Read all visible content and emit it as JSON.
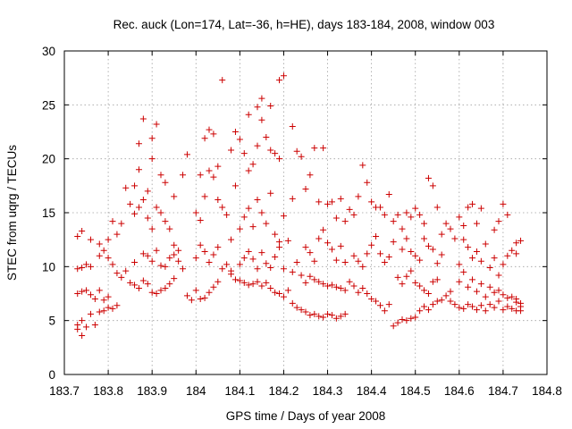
{
  "chart_data": {
    "type": "scatter",
    "title": "Rec. auck (Lon=174, Lat=-36, h=HE), days 183-184, 2008, window 003",
    "xlabel": "GPS time / Days of year 2008",
    "ylabel": "STEC from uqrg / TECUs",
    "xlim": [
      183.7,
      184.8
    ],
    "ylim": [
      0,
      30
    ],
    "xticks": [
      "183.7",
      "183.8",
      "183.9",
      "184",
      "184.1",
      "184.2",
      "184.3",
      "184.4",
      "184.5",
      "184.6",
      "184.7",
      "184.8"
    ],
    "yticks": [
      "0",
      "5",
      "10",
      "15",
      "20",
      "25",
      "30"
    ],
    "grid": true,
    "legend": "none",
    "marker": "+",
    "marker_color": "#cc0000",
    "points": [
      [
        183.73,
        4.2
      ],
      [
        183.73,
        4.6
      ],
      [
        183.74,
        3.6
      ],
      [
        183.74,
        5.0
      ],
      [
        183.75,
        4.4
      ],
      [
        183.76,
        5.6
      ],
      [
        183.77,
        4.6
      ],
      [
        183.78,
        5.8
      ],
      [
        183.79,
        5.9
      ],
      [
        183.8,
        6.2
      ],
      [
        183.81,
        6.1
      ],
      [
        183.82,
        6.4
      ],
      [
        183.73,
        7.5
      ],
      [
        183.74,
        7.7
      ],
      [
        183.75,
        7.8
      ],
      [
        183.76,
        7.4
      ],
      [
        183.77,
        7.0
      ],
      [
        183.78,
        7.8
      ],
      [
        183.79,
        6.9
      ],
      [
        183.8,
        7.2
      ],
      [
        183.73,
        9.8
      ],
      [
        183.74,
        9.9
      ],
      [
        183.75,
        10.2
      ],
      [
        183.76,
        10.0
      ],
      [
        183.78,
        11.0
      ],
      [
        183.79,
        11.5
      ],
      [
        183.8,
        10.8
      ],
      [
        183.81,
        10.2
      ],
      [
        183.82,
        9.4
      ],
      [
        183.83,
        9.0
      ],
      [
        183.73,
        12.8
      ],
      [
        183.74,
        13.3
      ],
      [
        183.76,
        12.5
      ],
      [
        183.78,
        12.1
      ],
      [
        183.8,
        12.5
      ],
      [
        183.81,
        14.2
      ],
      [
        183.82,
        13.0
      ],
      [
        183.83,
        14.0
      ],
      [
        183.84,
        17.3
      ],
      [
        183.85,
        15.8
      ],
      [
        183.86,
        17.5
      ],
      [
        183.87,
        19.0
      ],
      [
        183.85,
        8.5
      ],
      [
        183.86,
        8.3
      ],
      [
        183.87,
        8.0
      ],
      [
        183.88,
        8.7
      ],
      [
        183.89,
        8.4
      ],
      [
        183.9,
        7.6
      ],
      [
        183.91,
        7.5
      ],
      [
        183.92,
        7.8
      ],
      [
        183.93,
        8.0
      ],
      [
        183.94,
        8.4
      ],
      [
        183.95,
        8.9
      ],
      [
        183.84,
        9.6
      ],
      [
        183.86,
        10.4
      ],
      [
        183.88,
        11.2
      ],
      [
        183.89,
        11.0
      ],
      [
        183.9,
        10.5
      ],
      [
        183.91,
        11.5
      ],
      [
        183.92,
        10.1
      ],
      [
        183.93,
        10.0
      ],
      [
        183.94,
        10.8
      ],
      [
        183.95,
        11.1
      ],
      [
        183.96,
        11.5
      ],
      [
        183.86,
        14.9
      ],
      [
        183.87,
        15.5
      ],
      [
        183.88,
        16.2
      ],
      [
        183.89,
        14.5
      ],
      [
        183.9,
        13.5
      ],
      [
        183.91,
        15.5
      ],
      [
        183.92,
        15.0
      ],
      [
        183.93,
        14.2
      ],
      [
        183.94,
        13.5
      ],
      [
        183.95,
        12.0
      ],
      [
        183.87,
        21.4
      ],
      [
        183.88,
        23.7
      ],
      [
        183.89,
        17.0
      ],
      [
        183.9,
        20.0
      ],
      [
        183.9,
        21.9
      ],
      [
        183.91,
        23.2
      ],
      [
        183.92,
        18.5
      ],
      [
        183.93,
        17.8
      ],
      [
        183.95,
        16.5
      ],
      [
        183.97,
        18.5
      ],
      [
        183.98,
        20.4
      ],
      [
        183.96,
        10.5
      ],
      [
        183.97,
        9.8
      ],
      [
        183.98,
        7.3
      ],
      [
        183.99,
        6.9
      ],
      [
        184.0,
        7.8
      ],
      [
        184.01,
        7.0
      ],
      [
        184.02,
        7.1
      ],
      [
        184.03,
        7.6
      ],
      [
        184.04,
        8.1
      ],
      [
        184.05,
        8.6
      ],
      [
        184.0,
        10.8
      ],
      [
        184.01,
        12.0
      ],
      [
        184.02,
        11.4
      ],
      [
        184.03,
        10.4
      ],
      [
        184.04,
        11.1
      ],
      [
        184.05,
        11.8
      ],
      [
        184.06,
        9.8
      ],
      [
        184.07,
        10.2
      ],
      [
        184.08,
        9.6
      ],
      [
        184.0,
        15.0
      ],
      [
        184.01,
        14.3
      ],
      [
        184.02,
        16.5
      ],
      [
        184.03,
        18.9
      ],
      [
        184.04,
        18.3
      ],
      [
        184.05,
        16.2
      ],
      [
        184.06,
        15.5
      ],
      [
        184.07,
        14.8
      ],
      [
        184.08,
        12.5
      ],
      [
        184.01,
        18.5
      ],
      [
        184.02,
        21.9
      ],
      [
        184.03,
        22.7
      ],
      [
        184.04,
        22.3
      ],
      [
        184.05,
        19.3
      ],
      [
        184.06,
        27.3
      ],
      [
        184.08,
        20.8
      ],
      [
        184.09,
        17.5
      ],
      [
        184.08,
        9.3
      ],
      [
        184.09,
        8.8
      ],
      [
        184.1,
        8.7
      ],
      [
        184.11,
        8.5
      ],
      [
        184.12,
        8.3
      ],
      [
        184.13,
        8.4
      ],
      [
        184.14,
        8.6
      ],
      [
        184.15,
        8.2
      ],
      [
        184.16,
        8.5
      ],
      [
        184.17,
        8.0
      ],
      [
        184.18,
        7.6
      ],
      [
        184.19,
        7.5
      ],
      [
        184.2,
        7.2
      ],
      [
        184.1,
        10.2
      ],
      [
        184.11,
        10.8
      ],
      [
        184.12,
        11.4
      ],
      [
        184.13,
        10.7
      ],
      [
        184.14,
        9.8
      ],
      [
        184.15,
        11.3
      ],
      [
        184.16,
        10.3
      ],
      [
        184.17,
        9.9
      ],
      [
        184.18,
        10.9
      ],
      [
        184.19,
        11.8
      ],
      [
        184.2,
        9.8
      ],
      [
        184.1,
        13.5
      ],
      [
        184.11,
        14.6
      ],
      [
        184.12,
        15.4
      ],
      [
        184.13,
        13.7
      ],
      [
        184.14,
        16.2
      ],
      [
        184.15,
        15.0
      ],
      [
        184.16,
        14.0
      ],
      [
        184.17,
        16.8
      ],
      [
        184.18,
        13.0
      ],
      [
        184.19,
        12.3
      ],
      [
        184.09,
        22.5
      ],
      [
        184.1,
        21.8
      ],
      [
        184.11,
        20.5
      ],
      [
        184.12,
        18.9
      ],
      [
        184.13,
        19.5
      ],
      [
        184.14,
        21.2
      ],
      [
        184.15,
        23.6
      ],
      [
        184.16,
        22.0
      ],
      [
        184.17,
        20.8
      ],
      [
        184.18,
        20.5
      ],
      [
        184.19,
        20.0
      ],
      [
        184.12,
        24.1
      ],
      [
        184.14,
        24.8
      ],
      [
        184.15,
        25.6
      ],
      [
        184.17,
        24.9
      ],
      [
        184.19,
        27.3
      ],
      [
        184.2,
        27.7
      ],
      [
        184.2,
        14.7
      ],
      [
        184.21,
        12.4
      ],
      [
        184.22,
        16.3
      ],
      [
        184.23,
        20.7
      ],
      [
        184.24,
        20.2
      ],
      [
        184.22,
        23.0
      ],
      [
        184.25,
        17.2
      ],
      [
        184.26,
        18.5
      ],
      [
        184.27,
        21.0
      ],
      [
        184.29,
        21.0
      ],
      [
        184.28,
        16.0
      ],
      [
        184.21,
        7.8
      ],
      [
        184.22,
        6.6
      ],
      [
        184.23,
        6.2
      ],
      [
        184.24,
        6.0
      ],
      [
        184.25,
        5.8
      ],
      [
        184.26,
        5.5
      ],
      [
        184.27,
        5.6
      ],
      [
        184.28,
        5.4
      ],
      [
        184.29,
        5.3
      ],
      [
        184.3,
        5.6
      ],
      [
        184.31,
        5.5
      ],
      [
        184.32,
        5.2
      ],
      [
        184.33,
        5.4
      ],
      [
        184.34,
        5.6
      ],
      [
        184.22,
        9.5
      ],
      [
        184.23,
        10.4
      ],
      [
        184.24,
        9.2
      ],
      [
        184.25,
        8.5
      ],
      [
        184.26,
        9.1
      ],
      [
        184.27,
        8.8
      ],
      [
        184.28,
        8.6
      ],
      [
        184.29,
        8.4
      ],
      [
        184.3,
        8.2
      ],
      [
        184.31,
        8.3
      ],
      [
        184.32,
        8.1
      ],
      [
        184.33,
        8.0
      ],
      [
        184.34,
        7.8
      ],
      [
        184.25,
        11.8
      ],
      [
        184.26,
        11.3
      ],
      [
        184.27,
        10.5
      ],
      [
        184.28,
        12.6
      ],
      [
        184.29,
        13.4
      ],
      [
        184.3,
        12.2
      ],
      [
        184.31,
        11.6
      ],
      [
        184.32,
        10.6
      ],
      [
        184.33,
        11.9
      ],
      [
        184.34,
        10.4
      ],
      [
        184.3,
        15.8
      ],
      [
        184.31,
        16.0
      ],
      [
        184.32,
        14.5
      ],
      [
        184.33,
        16.3
      ],
      [
        184.34,
        14.2
      ],
      [
        184.35,
        15.3
      ],
      [
        184.36,
        14.8
      ],
      [
        184.37,
        16.5
      ],
      [
        184.38,
        19.4
      ],
      [
        184.39,
        17.8
      ],
      [
        184.4,
        16.0
      ],
      [
        184.41,
        15.5
      ],
      [
        184.35,
        8.6
      ],
      [
        184.36,
        8.2
      ],
      [
        184.37,
        7.6
      ],
      [
        184.38,
        8.0
      ],
      [
        184.39,
        7.5
      ],
      [
        184.4,
        7.0
      ],
      [
        184.41,
        6.8
      ],
      [
        184.42,
        6.4
      ],
      [
        184.43,
        5.9
      ],
      [
        184.44,
        6.5
      ],
      [
        184.36,
        11.0
      ],
      [
        184.37,
        10.5
      ],
      [
        184.38,
        10.0
      ],
      [
        184.39,
        11.2
      ],
      [
        184.4,
        12.0
      ],
      [
        184.41,
        12.8
      ],
      [
        184.42,
        11.2
      ],
      [
        184.43,
        10.4
      ],
      [
        184.44,
        10.9
      ],
      [
        184.45,
        12.3
      ],
      [
        184.42,
        15.5
      ],
      [
        184.43,
        14.8
      ],
      [
        184.44,
        16.7
      ],
      [
        184.45,
        14.2
      ],
      [
        184.46,
        14.8
      ],
      [
        184.47,
        13.5
      ],
      [
        184.48,
        15.0
      ],
      [
        184.49,
        14.6
      ],
      [
        184.5,
        15.4
      ],
      [
        184.51,
        14.8
      ],
      [
        184.52,
        14.0
      ],
      [
        184.53,
        18.2
      ],
      [
        184.54,
        17.5
      ],
      [
        184.55,
        15.5
      ],
      [
        184.45,
        4.5
      ],
      [
        184.46,
        4.8
      ],
      [
        184.47,
        5.1
      ],
      [
        184.48,
        5.0
      ],
      [
        184.49,
        5.2
      ],
      [
        184.5,
        5.3
      ],
      [
        184.51,
        5.9
      ],
      [
        184.52,
        6.3
      ],
      [
        184.53,
        6.0
      ],
      [
        184.54,
        6.5
      ],
      [
        184.55,
        6.8
      ],
      [
        184.56,
        6.9
      ],
      [
        184.57,
        7.3
      ],
      [
        184.58,
        7.7
      ],
      [
        184.46,
        9.0
      ],
      [
        184.47,
        8.4
      ],
      [
        184.48,
        9.1
      ],
      [
        184.49,
        9.6
      ],
      [
        184.5,
        8.5
      ],
      [
        184.51,
        8.2
      ],
      [
        184.52,
        7.8
      ],
      [
        184.53,
        7.5
      ],
      [
        184.54,
        8.6
      ],
      [
        184.55,
        8.8
      ],
      [
        184.47,
        11.6
      ],
      [
        184.48,
        12.6
      ],
      [
        184.49,
        11.4
      ],
      [
        184.5,
        11.0
      ],
      [
        184.51,
        10.6
      ],
      [
        184.52,
        12.6
      ],
      [
        184.53,
        11.9
      ],
      [
        184.54,
        11.6
      ],
      [
        184.55,
        10.3
      ],
      [
        184.56,
        11.1
      ],
      [
        184.56,
        13.0
      ],
      [
        184.57,
        14.0
      ],
      [
        184.58,
        13.5
      ],
      [
        184.59,
        12.6
      ],
      [
        184.6,
        14.6
      ],
      [
        184.61,
        13.8
      ],
      [
        184.62,
        15.5
      ],
      [
        184.63,
        15.8
      ],
      [
        184.64,
        14.0
      ],
      [
        184.65,
        15.4
      ],
      [
        184.58,
        6.8
      ],
      [
        184.59,
        6.5
      ],
      [
        184.6,
        6.2
      ],
      [
        184.61,
        6.1
      ],
      [
        184.62,
        6.5
      ],
      [
        184.63,
        6.3
      ],
      [
        184.64,
        6.0
      ],
      [
        184.65,
        6.4
      ],
      [
        184.66,
        5.9
      ],
      [
        184.67,
        6.5
      ],
      [
        184.68,
        6.2
      ],
      [
        184.69,
        6.8
      ],
      [
        184.7,
        6.0
      ],
      [
        184.71,
        6.3
      ],
      [
        184.72,
        6.1
      ],
      [
        184.73,
        5.9
      ],
      [
        184.6,
        8.6
      ],
      [
        184.61,
        9.5
      ],
      [
        184.62,
        8.1
      ],
      [
        184.63,
        8.8
      ],
      [
        184.64,
        7.7
      ],
      [
        184.65,
        8.4
      ],
      [
        184.66,
        7.2
      ],
      [
        184.67,
        8.1
      ],
      [
        184.68,
        7.6
      ],
      [
        184.69,
        7.8
      ],
      [
        184.7,
        7.4
      ],
      [
        184.71,
        7.1
      ],
      [
        184.72,
        7.2
      ],
      [
        184.73,
        7.0
      ],
      [
        184.6,
        10.2
      ],
      [
        184.61,
        12.5
      ],
      [
        184.62,
        11.8
      ],
      [
        184.63,
        10.8
      ],
      [
        184.64,
        11.4
      ],
      [
        184.65,
        10.5
      ],
      [
        184.66,
        12.1
      ],
      [
        184.67,
        9.9
      ],
      [
        184.68,
        10.8
      ],
      [
        184.69,
        9.2
      ],
      [
        184.7,
        10.2
      ],
      [
        184.71,
        11.0
      ],
      [
        184.68,
        13.4
      ],
      [
        184.69,
        14.2
      ],
      [
        184.7,
        15.8
      ],
      [
        184.71,
        14.8
      ],
      [
        184.72,
        11.5
      ],
      [
        184.73,
        12.2
      ],
      [
        184.73,
        11.2
      ],
      [
        184.74,
        12.4
      ],
      [
        184.74,
        6.3
      ],
      [
        184.74,
        6.6
      ],
      [
        184.74,
        5.9
      ],
      [
        184.73,
        6.7
      ]
    ]
  }
}
